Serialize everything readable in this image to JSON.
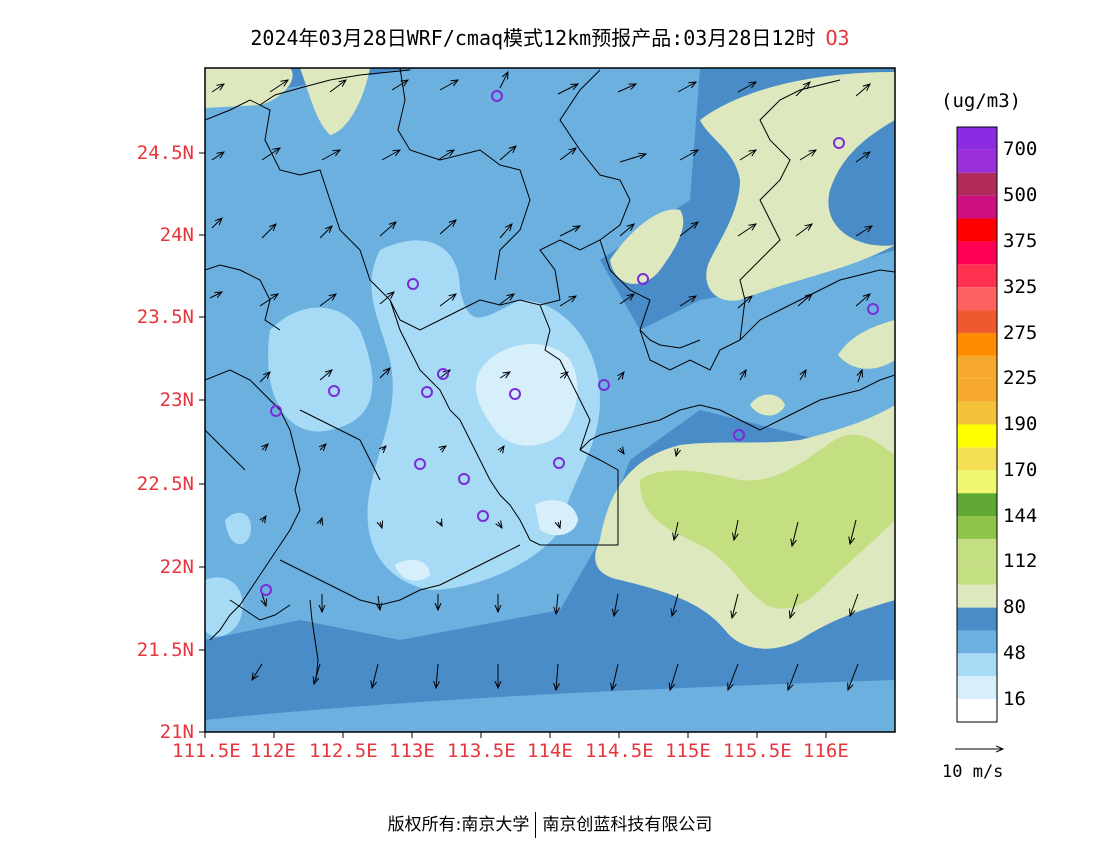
{
  "title": {
    "text": "2024年03月28日WRF/cmaq模式12km预报产品:03月28日12时",
    "pollutant": "O3"
  },
  "colorbar": {
    "units": "(ug/m3)",
    "bins": [
      {
        "color": "#ffffff",
        "label": ""
      },
      {
        "color": "#d6effa",
        "label": "16"
      },
      {
        "color": "#a6daf5",
        "label": ""
      },
      {
        "color": "#6cb0e0",
        "label": "48"
      },
      {
        "color": "#4a8cc8",
        "label": ""
      },
      {
        "color": "#dde8bf",
        "label": "80"
      },
      {
        "color": "#c4de82",
        "label": ""
      },
      {
        "color": "#c4de82",
        "label": "112"
      },
      {
        "color": "#8ec44a",
        "label": ""
      },
      {
        "color": "#5fa833",
        "label": "144"
      },
      {
        "color": "#f1f771",
        "label": ""
      },
      {
        "color": "#f5df55",
        "label": "170"
      },
      {
        "color": "#ffff00",
        "label": ""
      },
      {
        "color": "#f5c33a",
        "label": "190"
      },
      {
        "color": "#f7a92f",
        "label": ""
      },
      {
        "color": "#f7a92f",
        "label": "225"
      },
      {
        "color": "#ff8c00",
        "label": ""
      },
      {
        "color": "#ee5a2e",
        "label": "275"
      },
      {
        "color": "#ff6060",
        "label": ""
      },
      {
        "color": "#ff3050",
        "label": "325"
      },
      {
        "color": "#ff0055",
        "label": ""
      },
      {
        "color": "#ff0000",
        "label": "375"
      },
      {
        "color": "#cc1080",
        "label": ""
      },
      {
        "color": "#b02a5a",
        "label": "500"
      },
      {
        "color": "#9b30d8",
        "label": ""
      },
      {
        "color": "#8a2be2",
        "label": "700"
      }
    ],
    "labels": [
      "16",
      "48",
      "80",
      "112",
      "144",
      "170",
      "190",
      "225",
      "275",
      "325",
      "375",
      "500",
      "700"
    ]
  },
  "axes": {
    "lat_labels": [
      "21N",
      "21.5N",
      "22N",
      "22.5N",
      "23N",
      "23.5N",
      "24N",
      "24.5N"
    ],
    "lon_labels": [
      "111.5E",
      "112E",
      "112.5E",
      "113E",
      "113.5E",
      "114E",
      "114.5E",
      "115E",
      "115.5E",
      "116E"
    ]
  },
  "wind_reference": "10 m/s",
  "copyright": {
    "left": "版权所有:南京大学",
    "right": "南京创蓝科技有限公司"
  },
  "colors": {
    "background_dark": "#4a8cc8",
    "background_mid": "#6cb0e0",
    "light_blue": "#a6daf5",
    "pale_blue": "#d6effa",
    "pale_green": "#dde8bf",
    "green": "#c4de82",
    "axis_label": "#e8343c",
    "station_marker": "#7b2cd9"
  }
}
